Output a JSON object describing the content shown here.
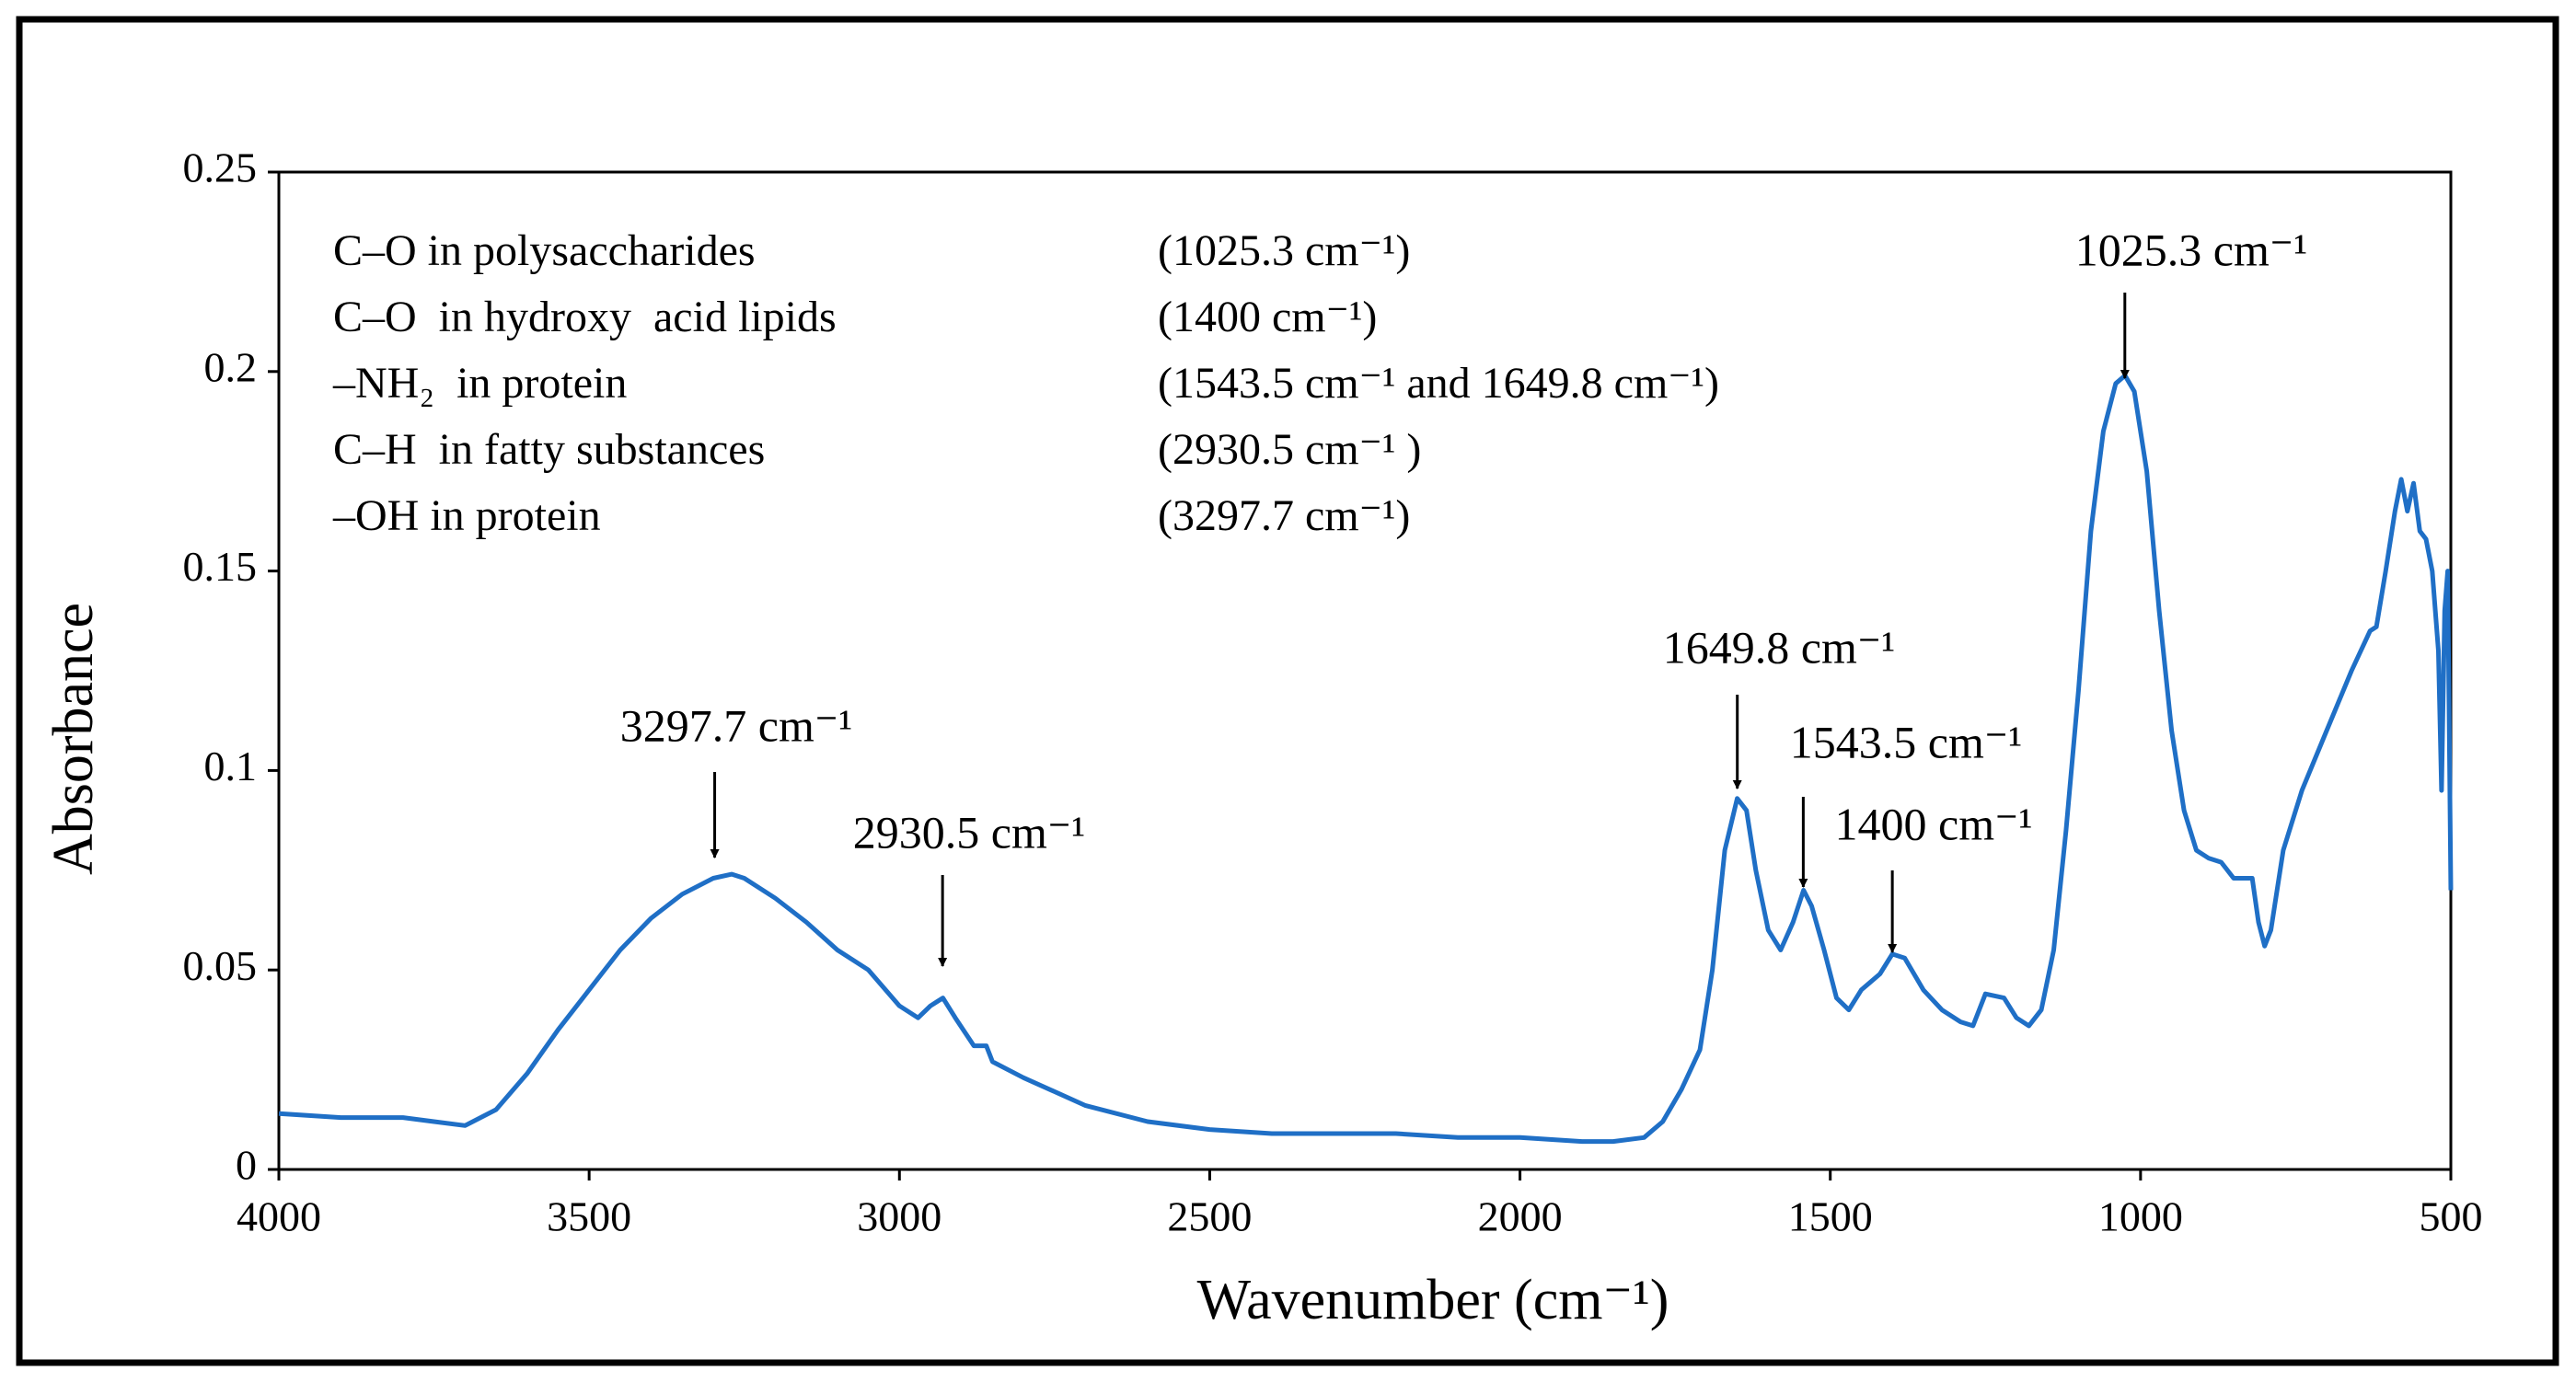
{
  "chart_data": {
    "type": "line",
    "x_label": "Wavenumber (cm⁻¹)",
    "y_label": "Absorbance",
    "color": "#1f6fc6",
    "xlim": [
      4000,
      500
    ],
    "xticks": [
      4000,
      3500,
      3000,
      2500,
      2000,
      1500,
      1000,
      500
    ],
    "ylim": [
      0,
      0.25
    ],
    "yticks": [
      0,
      0.05,
      0.1,
      0.15,
      0.2,
      0.25
    ],
    "x": [
      4000,
      3900,
      3800,
      3750,
      3700,
      3650,
      3600,
      3550,
      3500,
      3450,
      3400,
      3350,
      3300,
      3270,
      3250,
      3200,
      3150,
      3100,
      3050,
      3000,
      2970,
      2950,
      2930,
      2910,
      2880,
      2860,
      2850,
      2800,
      2700,
      2600,
      2500,
      2400,
      2300,
      2200,
      2100,
      2000,
      1900,
      1850,
      1800,
      1770,
      1740,
      1710,
      1690,
      1670,
      1650,
      1635,
      1620,
      1600,
      1580,
      1560,
      1543,
      1530,
      1510,
      1490,
      1470,
      1450,
      1420,
      1400,
      1380,
      1350,
      1320,
      1290,
      1270,
      1250,
      1220,
      1200,
      1180,
      1160,
      1140,
      1120,
      1100,
      1080,
      1060,
      1040,
      1025,
      1010,
      990,
      970,
      950,
      930,
      910,
      890,
      870,
      850,
      820,
      810,
      800,
      790,
      770,
      740,
      700,
      660,
      630,
      620,
      605,
      590,
      580,
      570,
      560,
      550,
      540,
      530,
      520,
      515,
      510,
      505,
      500
    ],
    "values": [
      0.014,
      0.013,
      0.013,
      0.012,
      0.011,
      0.015,
      0.024,
      0.035,
      0.045,
      0.055,
      0.063,
      0.069,
      0.073,
      0.074,
      0.073,
      0.068,
      0.062,
      0.055,
      0.05,
      0.041,
      0.038,
      0.041,
      0.043,
      0.038,
      0.031,
      0.031,
      0.027,
      0.023,
      0.016,
      0.012,
      0.01,
      0.009,
      0.009,
      0.009,
      0.008,
      0.008,
      0.007,
      0.007,
      0.008,
      0.012,
      0.02,
      0.03,
      0.05,
      0.08,
      0.093,
      0.09,
      0.075,
      0.06,
      0.055,
      0.062,
      0.07,
      0.066,
      0.055,
      0.043,
      0.04,
      0.045,
      0.049,
      0.054,
      0.053,
      0.045,
      0.04,
      0.037,
      0.036,
      0.044,
      0.043,
      0.038,
      0.036,
      0.04,
      0.055,
      0.085,
      0.12,
      0.16,
      0.185,
      0.197,
      0.199,
      0.195,
      0.175,
      0.14,
      0.11,
      0.09,
      0.08,
      0.078,
      0.077,
      0.073,
      0.073,
      0.062,
      0.056,
      0.06,
      0.08,
      0.095,
      0.11,
      0.125,
      0.135,
      0.136,
      0.15,
      0.165,
      0.173,
      0.165,
      0.172,
      0.16,
      0.158,
      0.15,
      0.13,
      0.095,
      0.14,
      0.15,
      0.07
    ],
    "annotations": [
      {
        "text": "3297.7 cm⁻¹",
        "x": 3297.7
      },
      {
        "text": "2930.5 cm⁻¹",
        "x": 2930.5
      },
      {
        "text": "1649.8 cm⁻¹",
        "x": 1649.8
      },
      {
        "text": "1543.5 cm⁻¹",
        "x": 1543.5
      },
      {
        "text": "1400 cm⁻¹",
        "x": 1400
      },
      {
        "text": "1025.3 cm⁻¹",
        "x": 1025.3
      }
    ],
    "assignments": [
      [
        "C–O in polysaccharides",
        "(1025.3 cm⁻¹)"
      ],
      [
        "C–O  in hydroxy  acid lipids",
        "(1400 cm⁻¹)"
      ],
      [
        "–NH₂  in protein",
        "(1543.5 cm⁻¹ and 1649.8 cm⁻¹)"
      ],
      [
        "C–H  in fatty substances",
        "(2930.5 cm⁻¹ )"
      ],
      [
        "–OH in protein",
        "(3297.7 cm⁻¹)"
      ]
    ]
  }
}
